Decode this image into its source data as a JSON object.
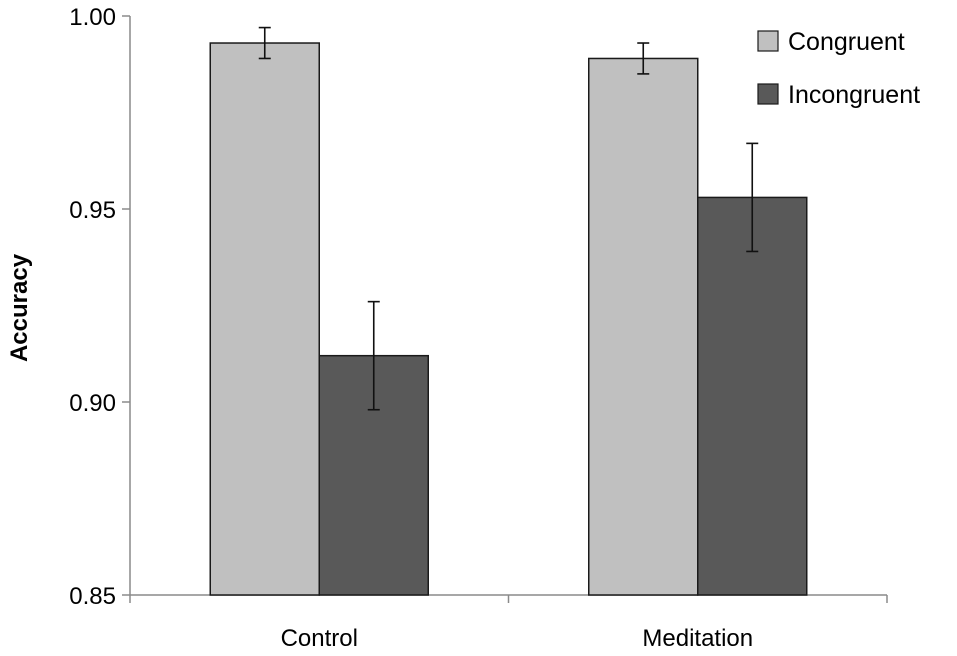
{
  "chart_data": {
    "type": "bar",
    "title": "",
    "xlabel": "",
    "ylabel": "Accuracy",
    "ylim": [
      0.85,
      1.0
    ],
    "yticks": [
      0.85,
      0.9,
      0.95,
      1.0
    ],
    "ytick_labels": [
      "0.85",
      "0.90",
      "0.95",
      "1.00"
    ],
    "categories": [
      "Control",
      "Meditation"
    ],
    "series": [
      {
        "name": "Congruent",
        "color": "#c0c0c0",
        "values": [
          0.993,
          0.989
        ],
        "errors": [
          0.004,
          0.004
        ]
      },
      {
        "name": "Incongruent",
        "color": "#595959",
        "values": [
          0.912,
          0.953
        ],
        "errors": [
          0.014,
          0.014
        ]
      }
    ],
    "legend": "top-right",
    "grid": false
  }
}
